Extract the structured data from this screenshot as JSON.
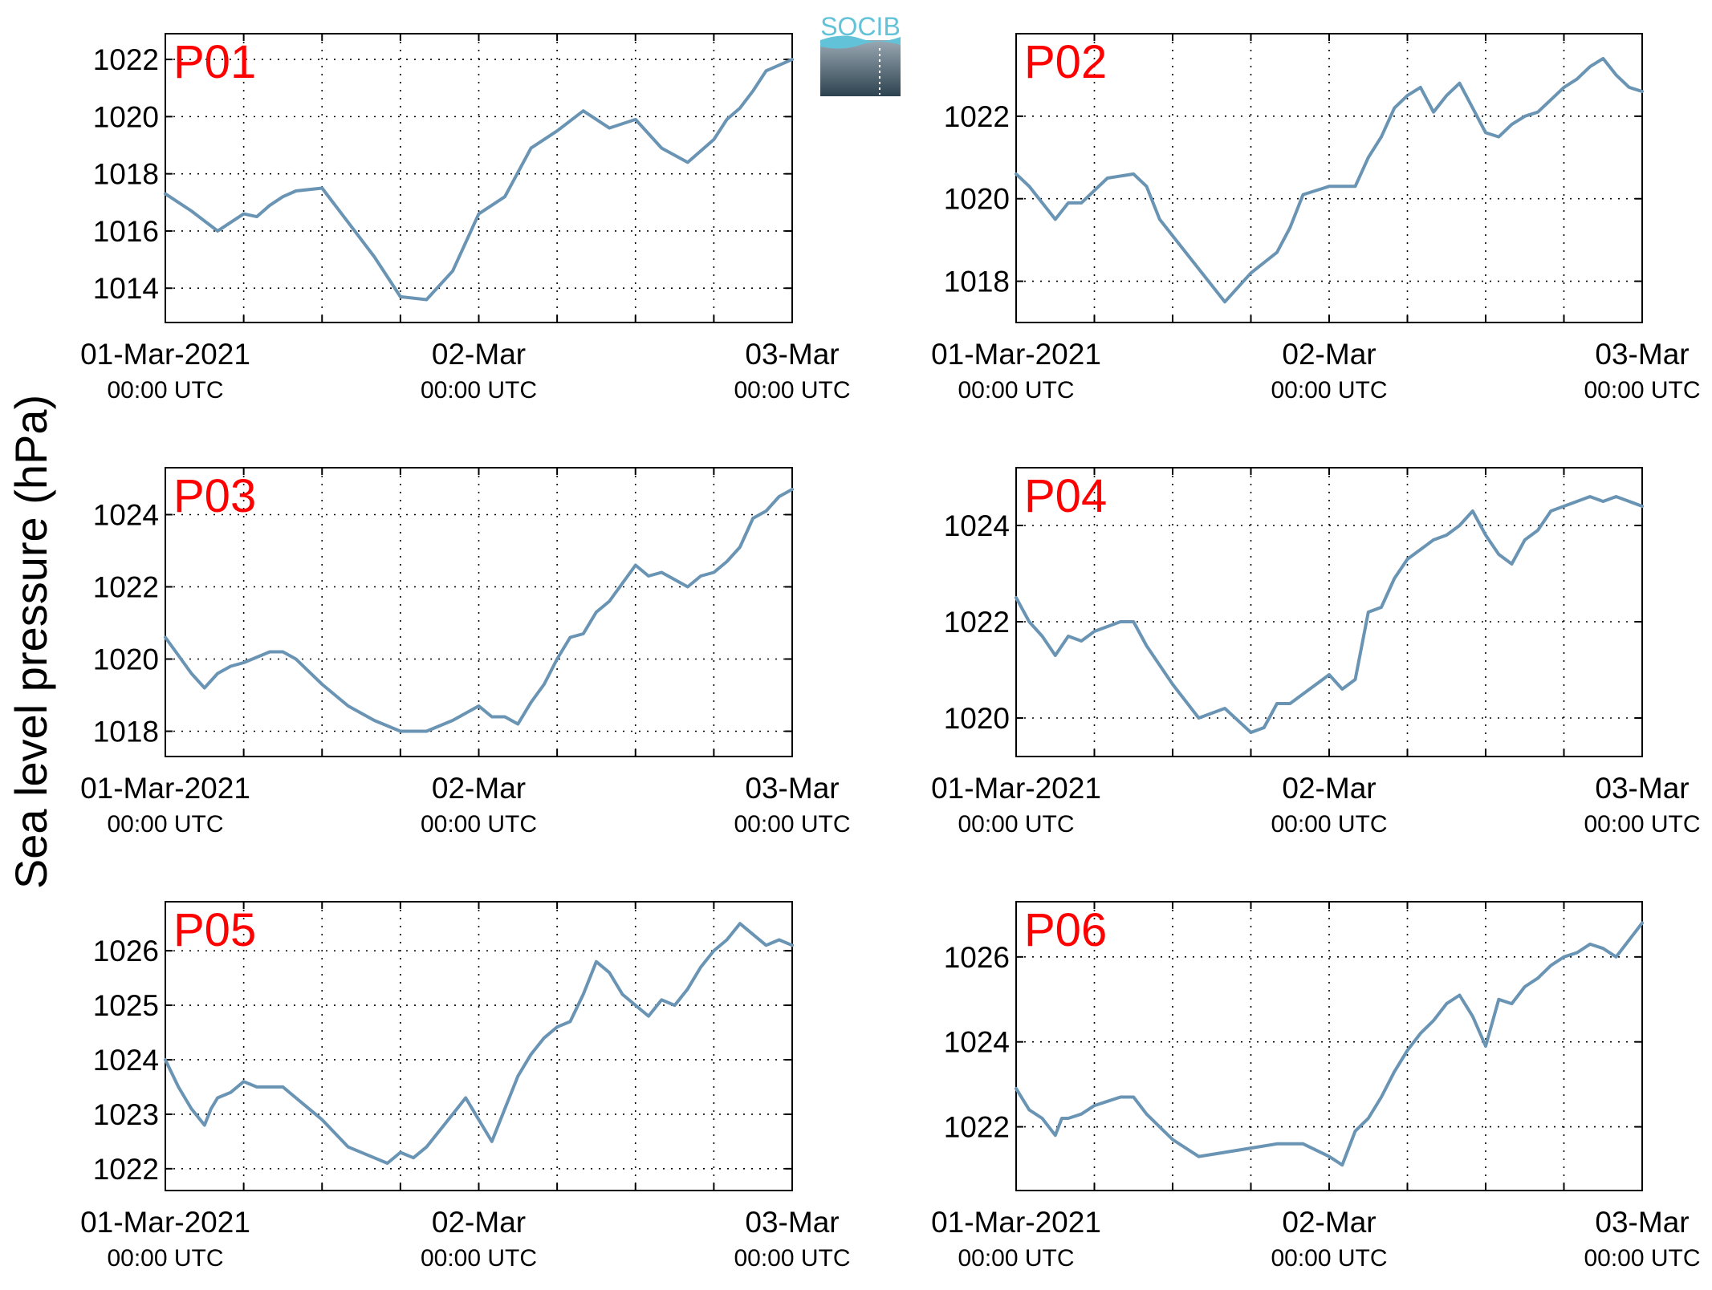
{
  "figure": {
    "ylabel": "Sea level pressure (hPa)",
    "logo_text": "SOCIB",
    "line_color": "#6a94b4",
    "label_color": "#ff0000"
  },
  "chart_data": [
    {
      "type": "line",
      "title": "P01",
      "ylabel": "Sea level pressure (hPa)",
      "x_range": [
        "2021-03-01T00:00Z",
        "2021-03-03T00:00Z"
      ],
      "xticks": [
        {
          "label": "01-Mar-2021",
          "sub": "00:00 UTC"
        },
        {
          "label": "02-Mar",
          "sub": "00:00 UTC"
        },
        {
          "label": "03-Mar",
          "sub": "00:00 UTC"
        }
      ],
      "ylim": [
        1012.8,
        1022.9
      ],
      "yticks": [
        1014,
        1016,
        1018,
        1020,
        1022
      ],
      "grid": true,
      "series": [
        {
          "x_hours": [
            0,
            2,
            4,
            6,
            7,
            8,
            9,
            10,
            12,
            14,
            16,
            18,
            20,
            22,
            24,
            26,
            28,
            30,
            32,
            34,
            36,
            38,
            40,
            42,
            43,
            44,
            45,
            46,
            48
          ],
          "values": [
            1017.3,
            1016.7,
            1016.0,
            1016.6,
            1016.5,
            1016.9,
            1017.2,
            1017.4,
            1017.5,
            1016.3,
            1015.1,
            1013.7,
            1013.6,
            1014.6,
            1016.6,
            1017.2,
            1018.9,
            1019.5,
            1020.2,
            1019.6,
            1019.9,
            1018.9,
            1018.4,
            1019.2,
            1019.9,
            1020.3,
            1020.9,
            1021.6,
            1022.0
          ]
        }
      ]
    },
    {
      "type": "line",
      "title": "P02",
      "ylabel": "Sea level pressure (hPa)",
      "x_range": [
        "2021-03-01T00:00Z",
        "2021-03-03T00:00Z"
      ],
      "xticks": [
        {
          "label": "01-Mar-2021",
          "sub": "00:00 UTC"
        },
        {
          "label": "02-Mar",
          "sub": "00:00 UTC"
        },
        {
          "label": "03-Mar",
          "sub": "00:00 UTC"
        }
      ],
      "ylim": [
        1017.0,
        1024.0
      ],
      "yticks": [
        1018,
        1020,
        1022
      ],
      "grid": true,
      "series": [
        {
          "x_hours": [
            0,
            1,
            3,
            4,
            5,
            6,
            7,
            9,
            10,
            11,
            13,
            16,
            18,
            20,
            21,
            22,
            24,
            26,
            27,
            28,
            29,
            30,
            31,
            32,
            33,
            34,
            35,
            36,
            37,
            38,
            39,
            40,
            41,
            42,
            43,
            44,
            45,
            46,
            47,
            48
          ],
          "values": [
            1020.6,
            1020.3,
            1019.5,
            1019.9,
            1019.9,
            1020.2,
            1020.5,
            1020.6,
            1020.3,
            1019.5,
            1018.7,
            1017.5,
            1018.2,
            1018.7,
            1019.3,
            1020.1,
            1020.3,
            1020.3,
            1021.0,
            1021.5,
            1022.2,
            1022.5,
            1022.7,
            1022.1,
            1022.5,
            1022.8,
            1022.2,
            1021.6,
            1021.5,
            1021.8,
            1022.0,
            1022.1,
            1022.4,
            1022.7,
            1022.9,
            1023.2,
            1023.4,
            1023.0,
            1022.7,
            1022.6
          ]
        }
      ]
    },
    {
      "type": "line",
      "title": "P03",
      "ylabel": "Sea level pressure (hPa)",
      "x_range": [
        "2021-03-01T00:00Z",
        "2021-03-03T00:00Z"
      ],
      "xticks": [
        {
          "label": "01-Mar-2021",
          "sub": "00:00 UTC"
        },
        {
          "label": "02-Mar",
          "sub": "00:00 UTC"
        },
        {
          "label": "03-Mar",
          "sub": "00:00 UTC"
        }
      ],
      "ylim": [
        1017.3,
        1025.3
      ],
      "yticks": [
        1018,
        1020,
        1022,
        1024
      ],
      "grid": true,
      "series": [
        {
          "x_hours": [
            0,
            1,
            2,
            3,
            4,
            5,
            6,
            8,
            9,
            10,
            12,
            14,
            16,
            18,
            20,
            22,
            24,
            25,
            26,
            27,
            28,
            29,
            30,
            31,
            32,
            33,
            34,
            35,
            36,
            37,
            38,
            39,
            40,
            41,
            42,
            43,
            44,
            45,
            46,
            47,
            48
          ],
          "values": [
            1020.6,
            1020.1,
            1019.6,
            1019.2,
            1019.6,
            1019.8,
            1019.9,
            1020.2,
            1020.2,
            1020.0,
            1019.3,
            1018.7,
            1018.3,
            1018.0,
            1018.0,
            1018.3,
            1018.7,
            1018.4,
            1018.4,
            1018.2,
            1018.8,
            1019.3,
            1020.0,
            1020.6,
            1020.7,
            1021.3,
            1021.6,
            1022.1,
            1022.6,
            1022.3,
            1022.4,
            1022.2,
            1022.0,
            1022.3,
            1022.4,
            1022.7,
            1023.1,
            1023.9,
            1024.1,
            1024.5,
            1024.7
          ]
        }
      ]
    },
    {
      "type": "line",
      "title": "P04",
      "ylabel": "Sea level pressure (hPa)",
      "x_range": [
        "2021-03-01T00:00Z",
        "2021-03-03T00:00Z"
      ],
      "xticks": [
        {
          "label": "01-Mar-2021",
          "sub": "00:00 UTC"
        },
        {
          "label": "02-Mar",
          "sub": "00:00 UTC"
        },
        {
          "label": "03-Mar",
          "sub": "00:00 UTC"
        }
      ],
      "ylim": [
        1019.2,
        1025.2
      ],
      "yticks": [
        1020,
        1022,
        1024
      ],
      "grid": true,
      "series": [
        {
          "x_hours": [
            0,
            1,
            2,
            3,
            4,
            5,
            6,
            7,
            8,
            9,
            10,
            12,
            14,
            16,
            18,
            19,
            20,
            21,
            22,
            24,
            25,
            26,
            27,
            28,
            29,
            30,
            31,
            32,
            33,
            34,
            35,
            36,
            37,
            38,
            39,
            40,
            41,
            42,
            43,
            44,
            45,
            46,
            47,
            48
          ],
          "values": [
            1022.5,
            1022.0,
            1021.7,
            1021.3,
            1021.7,
            1021.6,
            1021.8,
            1021.9,
            1022.0,
            1022.0,
            1021.5,
            1020.7,
            1020.0,
            1020.2,
            1019.7,
            1019.8,
            1020.3,
            1020.3,
            1020.5,
            1020.9,
            1020.6,
            1020.8,
            1022.2,
            1022.3,
            1022.9,
            1023.3,
            1023.5,
            1023.7,
            1023.8,
            1024.0,
            1024.3,
            1023.8,
            1023.4,
            1023.2,
            1023.7,
            1023.9,
            1024.3,
            1024.4,
            1024.5,
            1024.6,
            1024.5,
            1024.6,
            1024.5,
            1024.4
          ]
        }
      ]
    },
    {
      "type": "line",
      "title": "P05",
      "ylabel": "Sea level pressure (hPa)",
      "x_range": [
        "2021-03-01T00:00Z",
        "2021-03-03T00:00Z"
      ],
      "xticks": [
        {
          "label": "01-Mar-2021",
          "sub": "00:00 UTC"
        },
        {
          "label": "02-Mar",
          "sub": "00:00 UTC"
        },
        {
          "label": "03-Mar",
          "sub": "00:00 UTC"
        }
      ],
      "ylim": [
        1021.6,
        1026.9
      ],
      "yticks": [
        1022,
        1023,
        1024,
        1025,
        1026
      ],
      "grid": true,
      "series": [
        {
          "x_hours": [
            0,
            1,
            2,
            3,
            3.5,
            4,
            5,
            6,
            7,
            8,
            9,
            10,
            12,
            14,
            16,
            17,
            18,
            19,
            20,
            22,
            23,
            24,
            25,
            26,
            27,
            28,
            29,
            30,
            31,
            32,
            33,
            34,
            35,
            36,
            37,
            38,
            39,
            40,
            41,
            42,
            43,
            44,
            45,
            46,
            47,
            48
          ],
          "values": [
            1024.0,
            1023.5,
            1023.1,
            1022.8,
            1023.1,
            1023.3,
            1023.4,
            1023.6,
            1023.5,
            1023.5,
            1023.5,
            1023.3,
            1022.9,
            1022.4,
            1022.2,
            1022.1,
            1022.3,
            1022.2,
            1022.4,
            1023.0,
            1023.3,
            1022.9,
            1022.5,
            1023.1,
            1023.7,
            1024.1,
            1024.4,
            1024.6,
            1024.7,
            1025.2,
            1025.8,
            1025.6,
            1025.2,
            1025.0,
            1024.8,
            1025.1,
            1025.0,
            1025.3,
            1025.7,
            1026.0,
            1026.2,
            1026.5,
            1026.3,
            1026.1,
            1026.2,
            1026.1
          ]
        }
      ]
    },
    {
      "type": "line",
      "title": "P06",
      "ylabel": "Sea level pressure (hPa)",
      "x_range": [
        "2021-03-01T00:00Z",
        "2021-03-03T00:00Z"
      ],
      "xticks": [
        {
          "label": "01-Mar-2021",
          "sub": "00:00 UTC"
        },
        {
          "label": "02-Mar",
          "sub": "00:00 UTC"
        },
        {
          "label": "03-Mar",
          "sub": "00:00 UTC"
        }
      ],
      "ylim": [
        1020.5,
        1027.3
      ],
      "yticks": [
        1022,
        1024,
        1026
      ],
      "grid": true,
      "series": [
        {
          "x_hours": [
            0,
            1,
            2,
            3,
            3.5,
            4,
            5,
            6,
            7,
            8,
            9,
            10,
            12,
            14,
            16,
            18,
            20,
            22,
            24,
            25,
            26,
            27,
            28,
            29,
            30,
            31,
            32,
            33,
            34,
            35,
            36,
            37,
            38,
            39,
            40,
            41,
            42,
            43,
            44,
            45,
            46,
            47,
            48
          ],
          "values": [
            1022.9,
            1022.4,
            1022.2,
            1021.8,
            1022.2,
            1022.2,
            1022.3,
            1022.5,
            1022.6,
            1022.7,
            1022.7,
            1022.3,
            1021.7,
            1021.3,
            1021.4,
            1021.5,
            1021.6,
            1021.6,
            1021.3,
            1021.1,
            1021.9,
            1022.2,
            1022.7,
            1023.3,
            1023.8,
            1024.2,
            1024.5,
            1024.9,
            1025.1,
            1024.6,
            1023.9,
            1025.0,
            1024.9,
            1025.3,
            1025.5,
            1025.8,
            1026.0,
            1026.1,
            1026.3,
            1026.2,
            1026.0,
            1026.4,
            1026.8
          ]
        }
      ]
    }
  ]
}
